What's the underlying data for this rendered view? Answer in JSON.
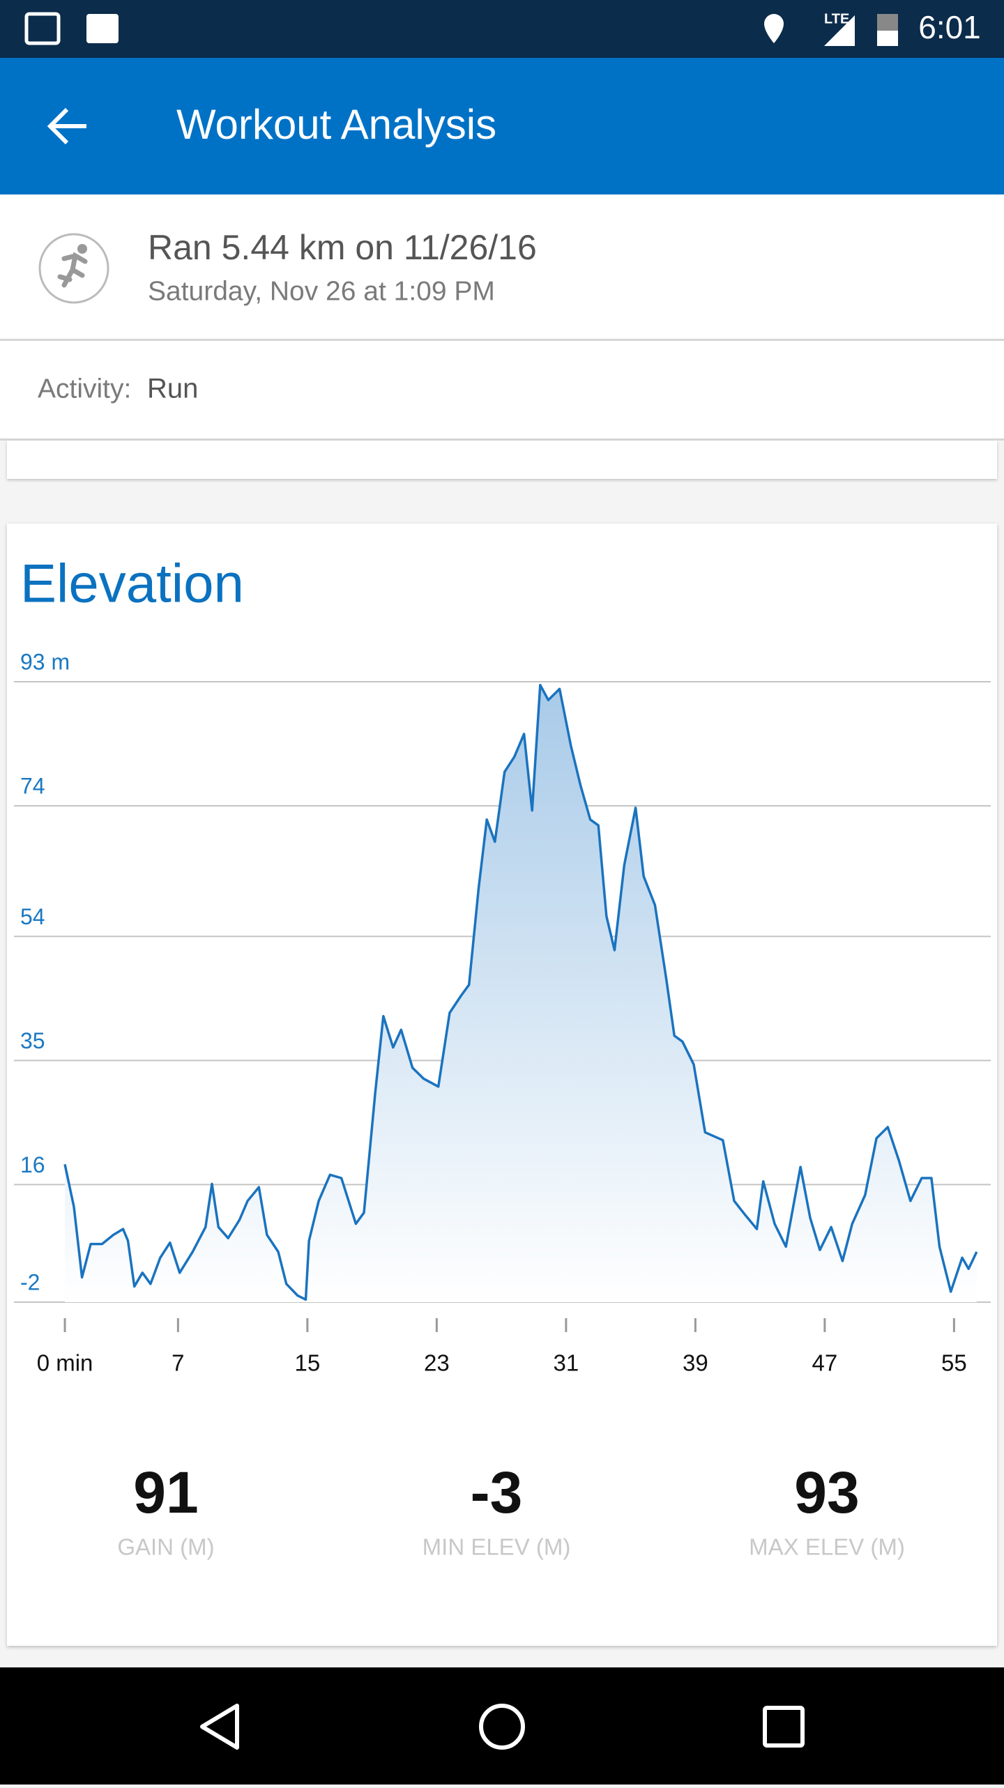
{
  "status_bar": {
    "time": "6:01",
    "network": "LTE"
  },
  "app_bar": {
    "title": "Workout Analysis"
  },
  "workout": {
    "title": "Ran 5.44 km on 11/26/16",
    "subtitle": "Saturday, Nov 26 at 1:09 PM"
  },
  "activity": {
    "label": "Activity:",
    "value": "Run"
  },
  "chart_data": {
    "type": "area",
    "title": "Elevation",
    "color": "#1a73bf",
    "x": [
      0,
      0.56,
      1.06,
      1.6,
      2.3,
      3.0,
      3.6,
      3.9,
      4.3,
      4.8,
      5.3,
      5.9,
      6.5,
      7.1,
      7.9,
      8.7,
      9.1,
      9.5,
      10.1,
      10.8,
      11.3,
      12.0,
      12.5,
      13.2,
      13.7,
      14.4,
      14.9,
      15.1,
      15.7,
      16.4,
      17.1,
      18.0,
      18.5,
      19.2,
      19.7,
      20.3,
      20.8,
      21.5,
      22.2,
      23.1,
      23.8,
      24.5,
      25.0,
      25.6,
      26.1,
      26.6,
      27.2,
      27.8,
      28.4,
      28.9,
      29.4,
      29.9,
      30.6,
      31.3,
      31.9,
      32.5,
      33.0,
      33.5,
      34.0,
      34.6,
      35.3,
      35.8,
      36.5,
      37.2,
      37.7,
      38.2,
      38.9,
      39.6,
      40.7,
      41.4,
      42.1,
      42.8,
      43.2,
      43.9,
      44.6,
      45.5,
      46.1,
      46.7,
      47.4,
      48.1,
      48.7,
      49.5,
      50.2,
      50.9,
      51.6,
      52.3,
      53.0,
      53.6,
      54.1,
      54.8,
      55.5,
      55.9,
      56.4
    ],
    "values": [
      19.1,
      12.6,
      1.8,
      6.9,
      6.9,
      8.3,
      9.2,
      7.4,
      0.4,
      2.5,
      0.8,
      4.8,
      7.1,
      2.5,
      5.7,
      9.5,
      16.1,
      9.5,
      7.8,
      10.6,
      13.5,
      15.6,
      8.3,
      5.7,
      0.8,
      -1.0,
      -1.6,
      7.4,
      13.5,
      17.5,
      17.0,
      10.0,
      11.7,
      30.1,
      41.8,
      37.0,
      39.7,
      33.9,
      32.2,
      31.0,
      42.3,
      44.9,
      46.6,
      61.5,
      71.9,
      68.5,
      79.2,
      81.5,
      85.0,
      73.3,
      92.5,
      90.2,
      91.9,
      83.2,
      77.1,
      71.9,
      71.0,
      57.1,
      51.9,
      64.9,
      73.7,
      63.2,
      58.8,
      47.5,
      38.8,
      37.9,
      34.4,
      24.0,
      22.8,
      13.5,
      11.3,
      9.2,
      16.5,
      10.0,
      6.5,
      18.7,
      10.9,
      6.0,
      9.5,
      4.3,
      10.0,
      14.4,
      23.1,
      24.8,
      19.6,
      13.5,
      17.0,
      17.0,
      6.5,
      -0.4,
      4.8,
      3.1,
      5.7
    ],
    "xlim": [
      -3.15,
      57.27
    ],
    "ylim": [
      -2,
      93
    ],
    "xticks": [
      {
        "value": 0,
        "label": "0 min"
      },
      7,
      15,
      23,
      31,
      39,
      47,
      55
    ],
    "yticks": [
      {
        "value": 93,
        "label": "93 m"
      },
      74,
      54,
      35,
      16,
      -2
    ],
    "grid": true
  },
  "stats": [
    {
      "value": 91,
      "label": "GAIN (M)"
    },
    {
      "value": -3,
      "label": "MIN ELEV (M)"
    },
    {
      "value": 93,
      "label": "MAX ELEV (M)"
    }
  ]
}
